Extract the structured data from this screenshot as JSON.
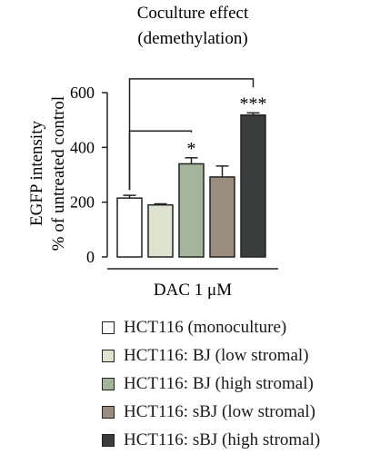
{
  "chart_data": {
    "type": "bar",
    "title_lines": [
      "Coculture effect",
      "(demethylation)"
    ],
    "ylabel_lines": [
      "EGFP intensity",
      "% of untreated control"
    ],
    "xlabel": "DAC 1 μM",
    "ylim": [
      0,
      600
    ],
    "yticks": [
      0,
      200,
      400,
      600
    ],
    "grid": false,
    "legend_position": "bottom",
    "series": [
      {
        "name": "HCT116 (monoculture)",
        "value": 215,
        "error": 10,
        "color": "#ffffff"
      },
      {
        "name": "HCT116: BJ (low stromal)",
        "value": 190,
        "error": 4,
        "color": "#dde3cf"
      },
      {
        "name": "HCT116: BJ (high stromal)",
        "value": 340,
        "error": 22,
        "color": "#a4b59c"
      },
      {
        "name": "HCT116: sBJ (low stromal)",
        "value": 292,
        "error": 40,
        "color": "#9b8c80"
      },
      {
        "name": "HCT116: sBJ (high stromal)",
        "value": 518,
        "error": 8,
        "color": "#3a3d3b"
      }
    ],
    "significance": [
      {
        "from": 0,
        "to": 2,
        "label": "*"
      },
      {
        "from": 0,
        "to": 4,
        "label": "***"
      }
    ]
  }
}
